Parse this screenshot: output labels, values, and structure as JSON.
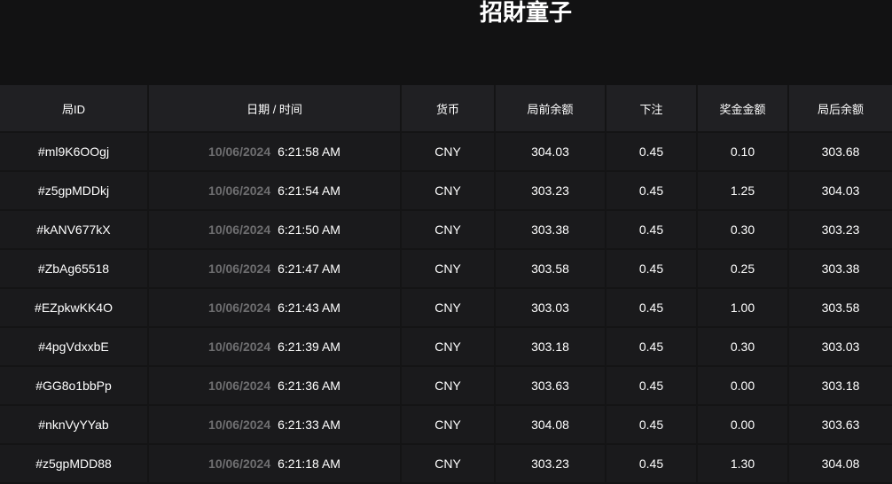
{
  "title": "招財童子",
  "columns": [
    "局ID",
    "日期 / 时间",
    "货币",
    "局前余额",
    "下注",
    "奖金金额",
    "局后余额"
  ],
  "rows": [
    {
      "id": "#ml9K6OOgj",
      "date": "10/06/2024",
      "time": "6:21:58 AM",
      "currency": "CNY",
      "before": "304.03",
      "bet": "0.45",
      "win": "0.10",
      "after": "303.68"
    },
    {
      "id": "#z5gpMDDkj",
      "date": "10/06/2024",
      "time": "6:21:54 AM",
      "currency": "CNY",
      "before": "303.23",
      "bet": "0.45",
      "win": "1.25",
      "after": "304.03"
    },
    {
      "id": "#kANV677kX",
      "date": "10/06/2024",
      "time": "6:21:50 AM",
      "currency": "CNY",
      "before": "303.38",
      "bet": "0.45",
      "win": "0.30",
      "after": "303.23"
    },
    {
      "id": "#ZbAg65518",
      "date": "10/06/2024",
      "time": "6:21:47 AM",
      "currency": "CNY",
      "before": "303.58",
      "bet": "0.45",
      "win": "0.25",
      "after": "303.38"
    },
    {
      "id": "#EZpkwKK4O",
      "date": "10/06/2024",
      "time": "6:21:43 AM",
      "currency": "CNY",
      "before": "303.03",
      "bet": "0.45",
      "win": "1.00",
      "after": "303.58"
    },
    {
      "id": "#4pgVdxxbE",
      "date": "10/06/2024",
      "time": "6:21:39 AM",
      "currency": "CNY",
      "before": "303.18",
      "bet": "0.45",
      "win": "0.30",
      "after": "303.03"
    },
    {
      "id": "#GG8o1bbPp",
      "date": "10/06/2024",
      "time": "6:21:36 AM",
      "currency": "CNY",
      "before": "303.63",
      "bet": "0.45",
      "win": "0.00",
      "after": "303.18"
    },
    {
      "id": "#nknVyYYab",
      "date": "10/06/2024",
      "time": "6:21:33 AM",
      "currency": "CNY",
      "before": "304.08",
      "bet": "0.45",
      "win": "0.00",
      "after": "303.63"
    },
    {
      "id": "#z5gpMDD88",
      "date": "10/06/2024",
      "time": "6:21:18 AM",
      "currency": "CNY",
      "before": "303.23",
      "bet": "0.45",
      "win": "1.30",
      "after": "304.08"
    }
  ]
}
